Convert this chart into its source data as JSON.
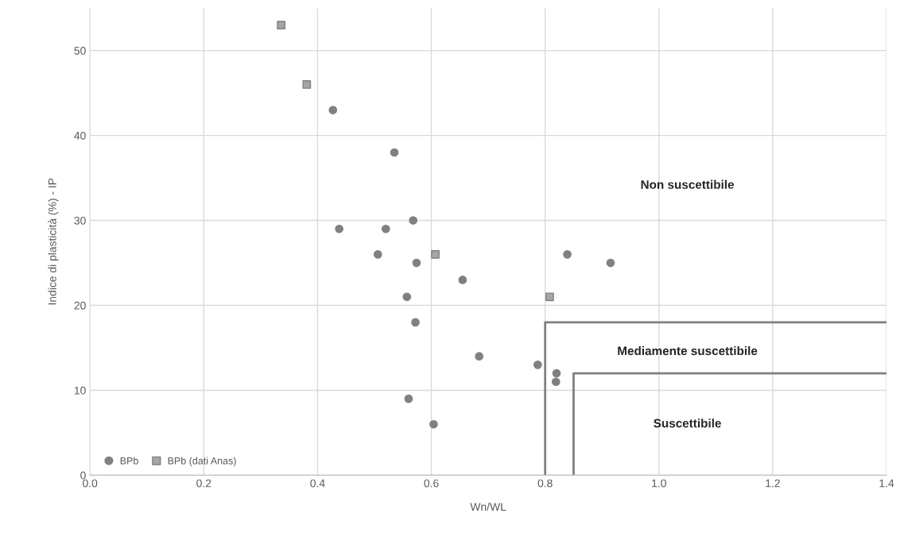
{
  "chart_data": {
    "type": "scatter",
    "xlabel": "Wn/WL",
    "ylabel": "Indice di plasticità (%) - IP",
    "xlim": [
      0,
      1.4
    ],
    "xticks": [
      {
        "value": 0,
        "label": "0.0"
      },
      {
        "value": 0.2,
        "label": "0.2"
      },
      {
        "value": 0.4,
        "label": "0.4"
      },
      {
        "value": 0.6,
        "label": "0.6"
      },
      {
        "value": 0.8,
        "label": "0.8"
      },
      {
        "value": 1.0,
        "label": "1.0"
      },
      {
        "value": 1.2,
        "label": "1.2"
      },
      {
        "value": 1.4,
        "label": "1.4"
      }
    ],
    "ylim": [
      0,
      55
    ],
    "yticks": [
      0,
      10,
      20,
      30,
      40,
      50
    ],
    "grid": true,
    "legend": "bottom left",
    "series": [
      {
        "name": "BPb",
        "marker": "circle",
        "color": "#808080",
        "x": [
          0.427,
          0.535,
          0.438,
          0.52,
          0.568,
          0.506,
          0.574,
          0.655,
          0.557,
          0.572,
          0.684,
          0.787,
          0.82,
          0.819,
          0.56,
          0.604,
          0.839,
          0.915
        ],
        "values": [
          43,
          38,
          29,
          29,
          30,
          26,
          25,
          23,
          21,
          18,
          14,
          13,
          12,
          11,
          9,
          6,
          26,
          25
        ]
      },
      {
        "name": "BPb (dati Anas)",
        "marker": "square",
        "color": "#a6a6a6",
        "x": [
          0.336,
          0.381,
          0.607,
          0.808
        ],
        "values": [
          53,
          46,
          26,
          21
        ]
      },
      {
        "type": "line",
        "marker": "none",
        "color": "#808080",
        "x": [
          0.8,
          0.8,
          1.4
        ],
        "values": [
          0,
          18,
          18
        ]
      },
      {
        "type": "line",
        "marker": "none",
        "color": "#808080",
        "x": [
          0.85,
          0.85,
          1.4
        ],
        "values": [
          0,
          12,
          12
        ]
      }
    ],
    "annotations": [
      "Non suscettibile",
      "Mediamente suscettibile",
      "Suscettibile"
    ]
  }
}
